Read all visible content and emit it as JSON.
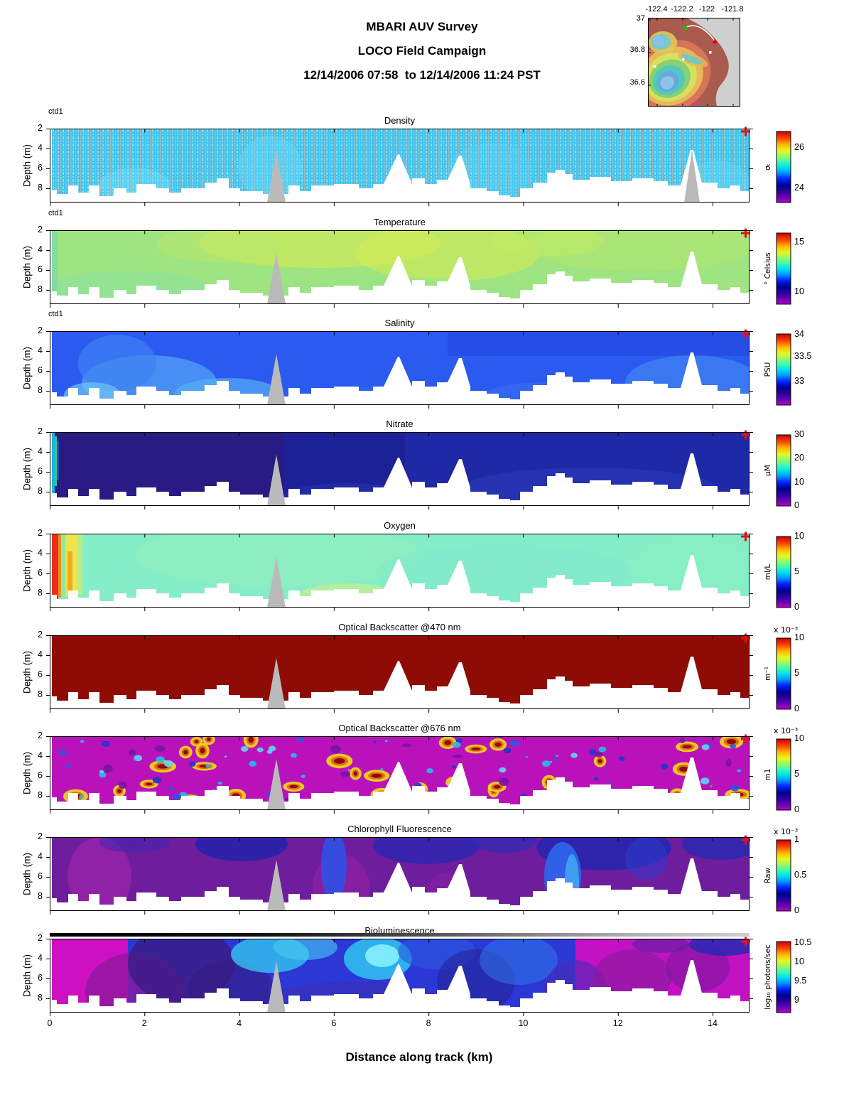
{
  "header": {
    "title1": "MBARI AUV Survey",
    "title2": "LOCO Field Campaign",
    "title3": "12/14/2006 07:58  to 12/14/2006 11:24 PST"
  },
  "map": {
    "lon_ticks": [
      "-122.4",
      "-122.2",
      "-122",
      "-121.8"
    ],
    "lat_ticks": [
      "37",
      "36.8",
      "36.6"
    ],
    "track_color": "#ffffff",
    "start_marker_color": "#00cc00",
    "end_marker_color": "#ee0000"
  },
  "axes": {
    "xlabel": "Distance along track (km)",
    "ylabel": "Depth (m)",
    "x_ticks": [
      "0",
      "2",
      "4",
      "6",
      "8",
      "10",
      "12",
      "14"
    ],
    "y_ticks": [
      "2",
      "4",
      "6",
      "8"
    ],
    "x_range_km": [
      0,
      14.8
    ],
    "depth_range_m": [
      2,
      9.4
    ]
  },
  "style": {
    "colormap_stops": [
      "#b400c8",
      "#7000b4",
      "#2800a0",
      "#000089",
      "#0020ff",
      "#009cff",
      "#00e4e8",
      "#3cf8b4",
      "#93fb64",
      "#e8f520",
      "#ffb400",
      "#ff4800",
      "#c80000"
    ],
    "profile_gap_color": "#bababa",
    "track_end_marker_color": "#e81010"
  },
  "chart_data": [
    {
      "type": "heatmap-section",
      "instrument": "ctd1",
      "title": "Density",
      "unit": "σₜ",
      "colorbar_ticks": [
        "26",
        "24"
      ],
      "colorbar_range_est": [
        23.2,
        26.9
      ],
      "x_range_km": [
        0,
        14.8
      ],
      "depth_range_m": [
        2,
        9.4
      ],
      "field_summary": "Near-uniform light-cyan section, ~24.2-24.6 sigma-t over 2-9 m, drawn as dense vertical yo-yo profile stripes with gray gaps; gray data-gap spikes near 3.8 and 12.5 km"
    },
    {
      "type": "heatmap-section",
      "instrument": "ctd1",
      "title": "Temperature",
      "unit": "° Celsius",
      "colorbar_ticks": [
        "15",
        "10"
      ],
      "colorbar_range_est": [
        8.8,
        16
      ],
      "x_range_km": [
        0,
        14.8
      ],
      "depth_range_m": [
        2,
        9.4
      ],
      "field_summary": "Mostly 12.5-13.5 C yellow-green; slightly warmer ~14 C yellowish patches near surface between 3 and 9 km"
    },
    {
      "type": "heatmap-section",
      "instrument": "ctd1",
      "title": "Salinity",
      "unit": "PSU",
      "colorbar_ticks": [
        "34",
        "33.5",
        "33"
      ],
      "colorbar_range_est": [
        32.7,
        34.1
      ],
      "x_range_km": [
        0,
        14.8
      ],
      "depth_range_m": [
        2,
        9.4
      ],
      "field_summary": "Royal-blue ~33.2-33.4 PSU; fresher lighter-blue patches ~33.0-33.1 near bottom at 0.5-4 km and beyond 12 km"
    },
    {
      "type": "heatmap-section",
      "title": "Nitrate",
      "unit": "µM",
      "colorbar_ticks": [
        "30",
        "20",
        "10",
        "0"
      ],
      "colorbar_range_est": [
        0,
        30
      ],
      "x_range_km": [
        0,
        14.8
      ],
      "depth_range_m": [
        2,
        9.4
      ],
      "field_summary": "Low ~2-6 uM dark navy with violet tint in first 5 km; slightly higher ~8 uM in right half; narrow high-nitrate cyan/green streak at 0 km"
    },
    {
      "type": "heatmap-section",
      "title": "Oxygen",
      "unit": "ml/L",
      "colorbar_ticks": [
        "10",
        "5",
        "0"
      ],
      "colorbar_range_est": [
        0,
        10
      ],
      "x_range_km": [
        0,
        14.8
      ],
      "depth_range_m": [
        2,
        9.4
      ],
      "field_summary": "Aquamarine ~5.5-6 ml/L everywhere except strong supersaturation bands (red ~9.5, yellow ~7.5 ml/L) within first 0.7 km"
    },
    {
      "type": "heatmap-section",
      "title": "Optical Backscatter @470 nm",
      "unit": "m⁻¹",
      "colorbar_scale": "x 10⁻³",
      "colorbar_ticks": [
        "10",
        "5",
        "0"
      ],
      "colorbar_range_est": [
        0,
        0.01
      ],
      "x_range_km": [
        0,
        14.8
      ],
      "depth_range_m": [
        2,
        9.4
      ],
      "field_summary": "Saturated high backscatter ~10e-3 1/m: uniform dark red across the whole section"
    },
    {
      "type": "heatmap-section",
      "title": "Optical Backscatter @676 nm",
      "unit": "m1",
      "colorbar_scale": "x 10⁻³",
      "colorbar_ticks": [
        "10",
        "5",
        "0"
      ],
      "colorbar_range_est": [
        0,
        0.01
      ],
      "x_range_km": [
        0,
        14.8
      ],
      "depth_range_m": [
        2,
        9.4
      ],
      "field_summary": "Low ~0.5-1e-3 magenta background mottled with patchy spikes to 10e-3: dark-red cores ringed by yellow/orange plus scattered cyan and blue spots"
    },
    {
      "type": "heatmap-section",
      "title": "Chlorophyll Fluorescence",
      "unit": "Raw",
      "colorbar_scale": "x 10⁻³",
      "colorbar_ticks": [
        "1",
        "0.5",
        "0"
      ],
      "colorbar_range_est": [
        0,
        0.001
      ],
      "x_range_km": [
        0,
        14.8
      ],
      "depth_range_m": [
        2,
        9.4
      ],
      "field_summary": "Low ~0.05-0.15 purple/violet body with magenta streaks; moderate ~0.3-0.5 dark-blue patches along the surface and bright-blue plumes near 5 and 9.5-10 km"
    },
    {
      "type": "heatmap-section",
      "title": "Bioluminescence",
      "unit": "log₁₀ photons/sec",
      "colorbar_ticks": [
        "10.5",
        "10",
        "9.5",
        "9"
      ],
      "colorbar_range_est": [
        8.8,
        10.6
      ],
      "x_range_km": [
        0,
        14.8
      ],
      "depth_range_m": [
        2,
        9.4
      ],
      "field_summary": "Blue ~9.6-9.9 mid-track with cyan maxima ~10.1 near surface at 3-7 km; magenta lows ~8.9-9.1 in first 1 km and from 10 km to end; black-to-gray time strip drawn above panel"
    }
  ]
}
